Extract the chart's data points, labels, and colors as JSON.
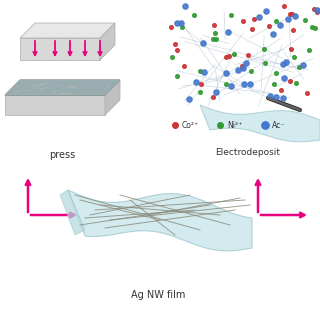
{
  "bg_color": "#ffffff",
  "press_label": "press",
  "agnw_label": "Ag NW film",
  "electrodep_label": "Electrodeposit",
  "legend_labels": [
    "Co²⁺",
    "Ni²⁺",
    "Ac⁻"
  ],
  "legend_colors": [
    "#cc3333",
    "#339933",
    "#4477cc"
  ],
  "arrow_color": "#e8007f",
  "film_color_face": "#c5e5ea",
  "film_color_edge": "#99c5cc",
  "press_top_color": "#d5d5d5",
  "press_top_dark": "#aaaaaa",
  "press_bot_color": "#cccccc",
  "press_bot_dark": "#999999",
  "press_mid_color": "#555555",
  "dot_co": "#cc3333",
  "dot_ni": "#339933",
  "dot_ac": "#4477cc",
  "wire_color": "#888877"
}
